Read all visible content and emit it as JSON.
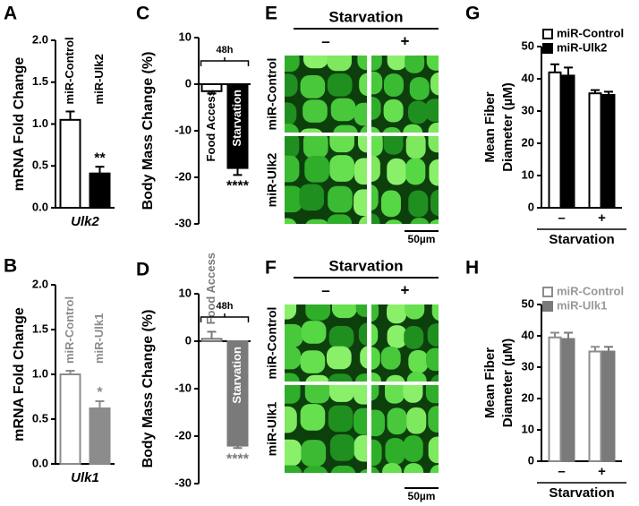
{
  "chart_data": [
    {
      "panel": "A",
      "type": "bar",
      "ylabel": "mRNA Fold Change",
      "xlabel": "Ulk2",
      "categories": [
        "miR-Control",
        "miR-Ulk2"
      ],
      "values": [
        1.05,
        0.41
      ],
      "errors": [
        0.1,
        0.08
      ],
      "colors": [
        "#ffffff",
        "#000000"
      ],
      "stroke": "#000000",
      "ylim": [
        0,
        2
      ],
      "yticks": [
        {
          "value": 0,
          "label": "0.0"
        },
        0.5,
        {
          "value": 1,
          "label": "1.0"
        },
        1.5,
        {
          "value": 2,
          "label": "2.0"
        }
      ],
      "value_annotations": [
        null,
        "**"
      ]
    },
    {
      "panel": "B",
      "type": "bar",
      "ylabel": "mRNA Fold Change",
      "xlabel": "Ulk1",
      "categories": [
        "miR-Control",
        "miR-Ulk1"
      ],
      "values": [
        1.0,
        0.62
      ],
      "errors": [
        0.04,
        0.08
      ],
      "colors": [
        "#ffffff",
        "#8c8c8c"
      ],
      "stroke": "#8c8c8c",
      "ylim": [
        0,
        2
      ],
      "yticks": [
        {
          "value": 0,
          "label": "0.0"
        },
        0.5,
        {
          "value": 1,
          "label": "1.0"
        },
        1.5,
        {
          "value": 2,
          "label": "2.0"
        }
      ],
      "value_annotations": [
        null,
        "*"
      ]
    },
    {
      "panel": "C",
      "type": "bar",
      "ylabel": "Body Mass Change (%)",
      "bracket_label": "48h",
      "categories": [
        "Food Access",
        "Starvation"
      ],
      "values": [
        -1.5,
        -18
      ],
      "errors": [
        0.5,
        1.5
      ],
      "colors": [
        "#ffffff",
        "#000000"
      ],
      "stroke": "#000000",
      "ylim": [
        -30,
        10
      ],
      "yticks": [
        -30,
        -20,
        -10,
        0,
        10
      ],
      "value_annotations": [
        null,
        "****"
      ]
    },
    {
      "panel": "D",
      "type": "bar",
      "ylabel": "Body Mass Change (%)",
      "bracket_label": "48h",
      "categories": [
        "Food Access",
        "Starvation"
      ],
      "values": [
        0.5,
        -22
      ],
      "errors": [
        1.5,
        0.5
      ],
      "colors": [
        "#ffffff",
        "#7a7a7a"
      ],
      "stroke": "#7a7a7a",
      "ylim": [
        -30,
        10
      ],
      "yticks": [
        -30,
        -20,
        -10,
        0,
        10
      ],
      "value_annotations": [
        null,
        "****"
      ]
    },
    {
      "panel": "G",
      "type": "bar",
      "ylabel_lines": [
        "Mean Fiber",
        "Diameter (µM)"
      ],
      "xlabel": "Starvation",
      "categories": [
        "–",
        "+"
      ],
      "series": [
        {
          "name": "miR-Control",
          "color": "#ffffff",
          "stroke": "#000000",
          "values": [
            42,
            35.5
          ],
          "errors": [
            2.5,
            1
          ]
        },
        {
          "name": "miR-Ulk2",
          "color": "#000000",
          "stroke": "#000000",
          "values": [
            41,
            35
          ],
          "errors": [
            2.5,
            1
          ]
        }
      ],
      "ylim": [
        0,
        50
      ],
      "yticks": [
        0,
        10,
        20,
        30,
        40,
        50
      ]
    },
    {
      "panel": "H",
      "type": "bar",
      "ylabel_lines": [
        "Mean Fiber",
        "Diameter (µM)"
      ],
      "xlabel": "Starvation",
      "categories": [
        "–",
        "+"
      ],
      "series": [
        {
          "name": "miR-Control",
          "color": "#ffffff",
          "stroke": "#8c8c8c",
          "values": [
            39.5,
            35
          ],
          "errors": [
            1.5,
            1.5
          ]
        },
        {
          "name": "miR-Ulk1",
          "color": "#7a7a7a",
          "stroke": "#7a7a7a",
          "values": [
            39,
            35
          ],
          "errors": [
            2,
            1.5
          ]
        }
      ],
      "ylim": [
        0,
        50
      ],
      "yticks": [
        0,
        10,
        20,
        30,
        40,
        50
      ]
    }
  ],
  "image_panels": [
    {
      "panel": "E",
      "header": "Starvation",
      "columns": [
        "–",
        "+"
      ],
      "rows": [
        "miR-Control",
        "miR-Ulk2"
      ],
      "scale": "50µm"
    },
    {
      "panel": "F",
      "header": "Starvation",
      "columns": [
        "–",
        "+"
      ],
      "rows": [
        "miR-Control",
        "miR-Ulk1"
      ],
      "scale": "50µm"
    }
  ]
}
